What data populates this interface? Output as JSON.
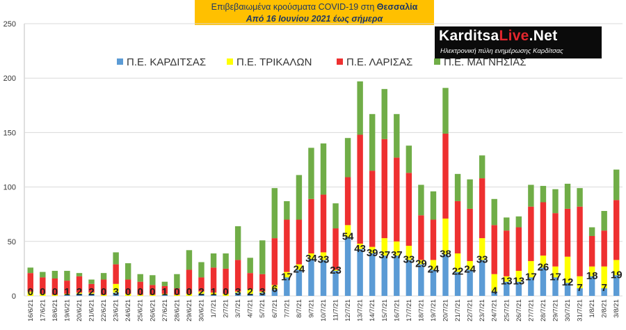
{
  "title": {
    "line1_prefix": "Επιβεβαιωμένα κρούσματα COVID-19 στη ",
    "line1_highlight": "Θεσσαλία",
    "line2": "Από 16 Ιουνίου 2021 έως σήμερα"
  },
  "logo": {
    "part1": "Karditsa",
    "part2": "Live",
    "part3": ".Net",
    "subtitle": "Ηλεκτρονική πύλη ενημέρωσης Καρδίτσας"
  },
  "colors": {
    "karditsa": "#5b9bd5",
    "trikala": "#ffff00",
    "larisa": "#ee3030",
    "magnisia": "#70ad47",
    "grid": "#d9d9d9",
    "title_bg": "#ffc000"
  },
  "chart_data": {
    "type": "bar",
    "stacked": true,
    "ylim": [
      0,
      250
    ],
    "yticks": [
      0,
      50,
      100,
      150,
      200,
      250
    ],
    "grid": true,
    "legend_position": "top",
    "categories": [
      "16/6/21",
      "17/6/21",
      "18/6/21",
      "19/6/21",
      "20/6/21",
      "21/6/21",
      "22/6/21",
      "23/6/21",
      "24/6/21",
      "25/6/21",
      "26/6/21",
      "27/6/21",
      "28/6/21",
      "29/6/21",
      "30/6/21",
      "1/7/21",
      "2/7/21",
      "3/7/21",
      "4/7/21",
      "5/7/21",
      "6/7/21",
      "7/7/21",
      "8/7/21",
      "9/7/21",
      "10/7/21",
      "11/7/21",
      "12/7/21",
      "13/7/21",
      "14/7/21",
      "15/7/21",
      "16/7/21",
      "17/7/21",
      "18/7/21",
      "19/7/21",
      "20/7/21",
      "21/7/21",
      "22/7/21",
      "23/7/21",
      "24/7/21",
      "25/7/21",
      "26/7/21",
      "27/7/21",
      "28/7/21",
      "29/7/21",
      "30/7/21",
      "31/7/21",
      "1/8/21",
      "2/8/21",
      "3/8/21"
    ],
    "tick_labels": [
      "16/6/21",
      "",
      "18/6/21",
      "",
      "20/6/21",
      "",
      "22/6/21",
      "",
      "24/6/21",
      "",
      "26/6/21",
      "",
      "28/6/21",
      "",
      "30/6/21",
      "",
      "2/7/21",
      "",
      "4/7/21",
      "",
      "6/7/21",
      "",
      "8/7/21",
      "",
      "10/7/21",
      "",
      "12/7/21",
      "",
      "14/7/21",
      "",
      "16/7/21",
      "",
      "18/7/21",
      "",
      "20/7/21",
      "",
      "22/7/21",
      "",
      "24/7/21",
      "",
      "26/7/21",
      "",
      "28/7/21",
      "",
      "30/7/21",
      "",
      "1/8/21",
      "",
      "3/8/21"
    ],
    "visible_tick_labels": [
      "16/6/21",
      "17/6/21",
      "18/6/21",
      "19/6/21",
      "20/6/21",
      "21/6/21",
      "22/6/21",
      "23/6/21",
      "24/6/21",
      "25/6/21",
      "26/6/21",
      "27/6/21",
      "28/6/21",
      "29/6/21",
      "30/6/21",
      "1/7/21",
      "2/7/21",
      "3/7/21",
      "4/7/21",
      "5/7/21",
      "6/7/21",
      "7/7/21",
      "8/7/21",
      "9/7/21",
      "10/7/21",
      "11/7/21",
      "12/7/21",
      "13/7/21",
      "14/7/21",
      "15/7/21",
      "16/7/21",
      "17/7/21",
      "18/7/21",
      "19/7/21",
      "20/7/21",
      "21/7/21",
      "22/7/21",
      "23/7/21",
      "24/7/21",
      "25/7/21",
      "26/7/21",
      "27/7/21",
      "28/7/21",
      "29/7/21",
      "30/7/21",
      "31/7/21",
      "1/8/21",
      "2/8/21",
      "3/8/21"
    ],
    "series": [
      {
        "name": "Π.Ε. ΚΑΡΔΙΤΣΑΣ",
        "values": [
          0,
          0,
          0,
          1,
          2,
          2,
          0,
          3,
          0,
          0,
          0,
          1,
          0,
          0,
          2,
          1,
          0,
          3,
          2,
          3,
          6,
          17,
          24,
          34,
          33,
          23,
          54,
          43,
          39,
          37,
          37,
          33,
          29,
          24,
          38,
          22,
          24,
          33,
          4,
          13,
          13,
          17,
          26,
          17,
          12,
          7,
          18,
          7,
          19
        ]
      },
      {
        "name": "Π.Ε. ΤΡΙΚΑΛΩΝ",
        "values": [
          4,
          2,
          1,
          1,
          1,
          1,
          1,
          8,
          2,
          1,
          1,
          1,
          1,
          2,
          2,
          2,
          2,
          1,
          4,
          1,
          4,
          5,
          5,
          5,
          7,
          1,
          11,
          5,
          6,
          16,
          13,
          13,
          4,
          9,
          33,
          17,
          8,
          20,
          16,
          5,
          10,
          15,
          11,
          10,
          24,
          11,
          9,
          20,
          14
        ]
      },
      {
        "name": "Π.Ε. ΛΑΡΙΣΑΣ",
        "values": [
          17,
          15,
          15,
          12,
          15,
          8,
          14,
          18,
          13,
          12,
          9,
          7,
          6,
          22,
          13,
          23,
          23,
          29,
          15,
          16,
          43,
          48,
          41,
          50,
          53,
          38,
          44,
          100,
          70,
          91,
          77,
          67,
          41,
          37,
          78,
          48,
          48,
          55,
          45,
          42,
          40,
          50,
          49,
          49,
          44,
          64,
          28,
          33,
          55
        ]
      },
      {
        "name": "Π.Ε. ΜΑΓΝΗΣΙΑΣ",
        "values": [
          5,
          5,
          7,
          9,
          3,
          4,
          6,
          11,
          15,
          7,
          9,
          4,
          13,
          18,
          14,
          13,
          14,
          31,
          14,
          31,
          46,
          17,
          41,
          47,
          47,
          23,
          36,
          49,
          52,
          46,
          40,
          25,
          28,
          26,
          42,
          25,
          27,
          21,
          24,
          12,
          10,
          20,
          15,
          22,
          23,
          17,
          8,
          18,
          28
        ]
      }
    ],
    "data_labels": [
      "0",
      "0",
      "0",
      "1",
      "2",
      "2",
      "0",
      "3",
      "0",
      "0",
      "0",
      "1",
      "0",
      "0",
      "2",
      "1",
      "0",
      "3",
      "2",
      "3",
      "6",
      "17",
      "24",
      "34",
      "33",
      "23",
      "54",
      "43",
      "39",
      "37",
      "37",
      "33",
      "29",
      "24",
      "38",
      "22",
      "24",
      "33",
      "4",
      "13",
      "13",
      "17",
      "26",
      "17",
      "12",
      "7",
      "18",
      "7",
      "19"
    ]
  }
}
